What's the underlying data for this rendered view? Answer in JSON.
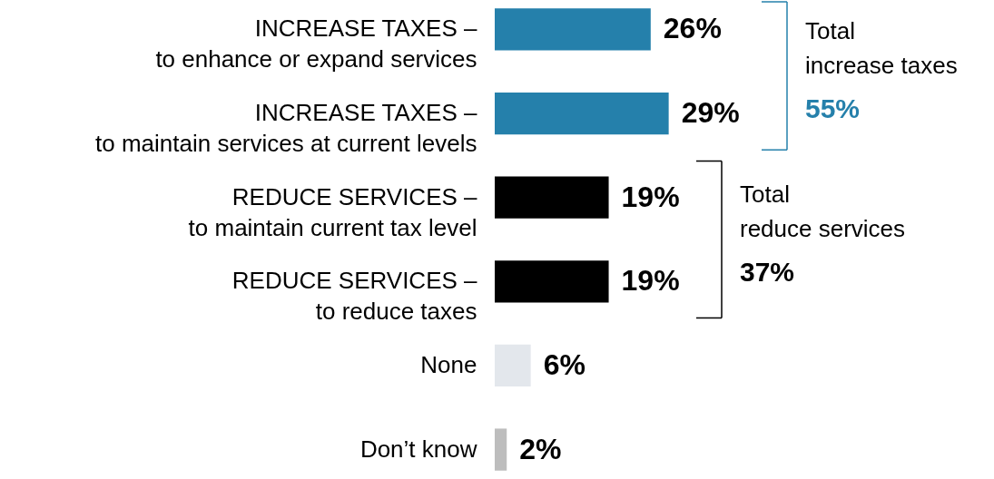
{
  "chart_data": {
    "type": "bar",
    "orientation": "horizontal",
    "categories": [
      "INCREASE TAXES –\nto enhance or expand services",
      "INCREASE TAXES –\nto maintain services at current levels",
      "REDUCE SERVICES –\nto maintain current tax level",
      "REDUCE SERVICES –\nto reduce taxes",
      "None",
      "Don’t know"
    ],
    "values": [
      26,
      29,
      19,
      19,
      6,
      2
    ],
    "colors": [
      "#2580ab",
      "#2580ab",
      "#000000",
      "#000000",
      "#e3e7ec",
      "#bdbdbd"
    ],
    "value_labels": [
      "26%",
      "29%",
      "19%",
      "19%",
      "6%",
      "2%"
    ],
    "annotations": [
      "Total\nincrease taxes",
      "55%",
      "Total\nreduce services",
      "37%"
    ]
  }
}
